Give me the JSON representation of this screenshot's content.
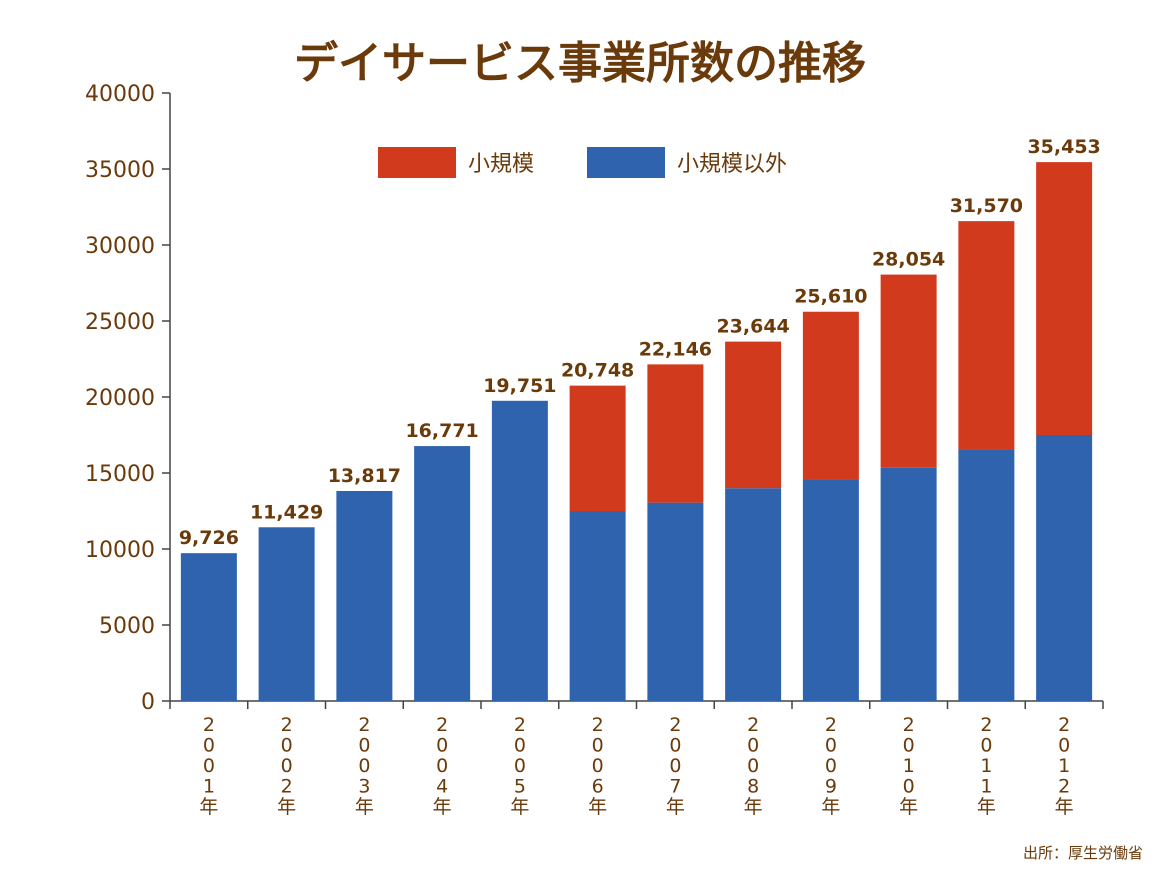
{
  "colors": {
    "title": "#6b3a0a",
    "axis_text": "#6b3a0a",
    "small": "#d13a1c",
    "other": "#2f63ad",
    "axis_line": "#444444"
  },
  "chart_data": {
    "type": "bar",
    "stacked": true,
    "title": "デイサービス事業所数の推移",
    "categories": [
      "2001年",
      "2002年",
      "2003年",
      "2004年",
      "2005年",
      "2006年",
      "2007年",
      "2008年",
      "2009年",
      "2010年",
      "2011年",
      "2012年"
    ],
    "totals": [
      9726,
      11429,
      13817,
      16771,
      19751,
      20748,
      22146,
      23644,
      25610,
      28054,
      31570,
      35453
    ],
    "total_labels": [
      "9,726",
      "11,429",
      "13,817",
      "16,771",
      "19,751",
      "20,748",
      "22,146",
      "23,644",
      "25,610",
      "28,054",
      "31,570",
      "35,453"
    ],
    "series": [
      {
        "name": "小規模以外",
        "values": [
          9726,
          11429,
          13817,
          16771,
          19751,
          12500,
          13050,
          14000,
          14600,
          15350,
          16550,
          17500
        ]
      },
      {
        "name": "小規模",
        "values": [
          0,
          0,
          0,
          0,
          0,
          8248,
          9096,
          9644,
          11010,
          12704,
          15020,
          17953
        ]
      }
    ],
    "legend_order": [
      "小規模",
      "小規模以外"
    ],
    "legend_position": "top-center",
    "ylim": [
      0,
      40000
    ],
    "yticks": [
      0,
      5000,
      10000,
      15000,
      20000,
      25000,
      30000,
      35000,
      40000
    ],
    "grid": false,
    "source": "出所：厚生労働省"
  }
}
